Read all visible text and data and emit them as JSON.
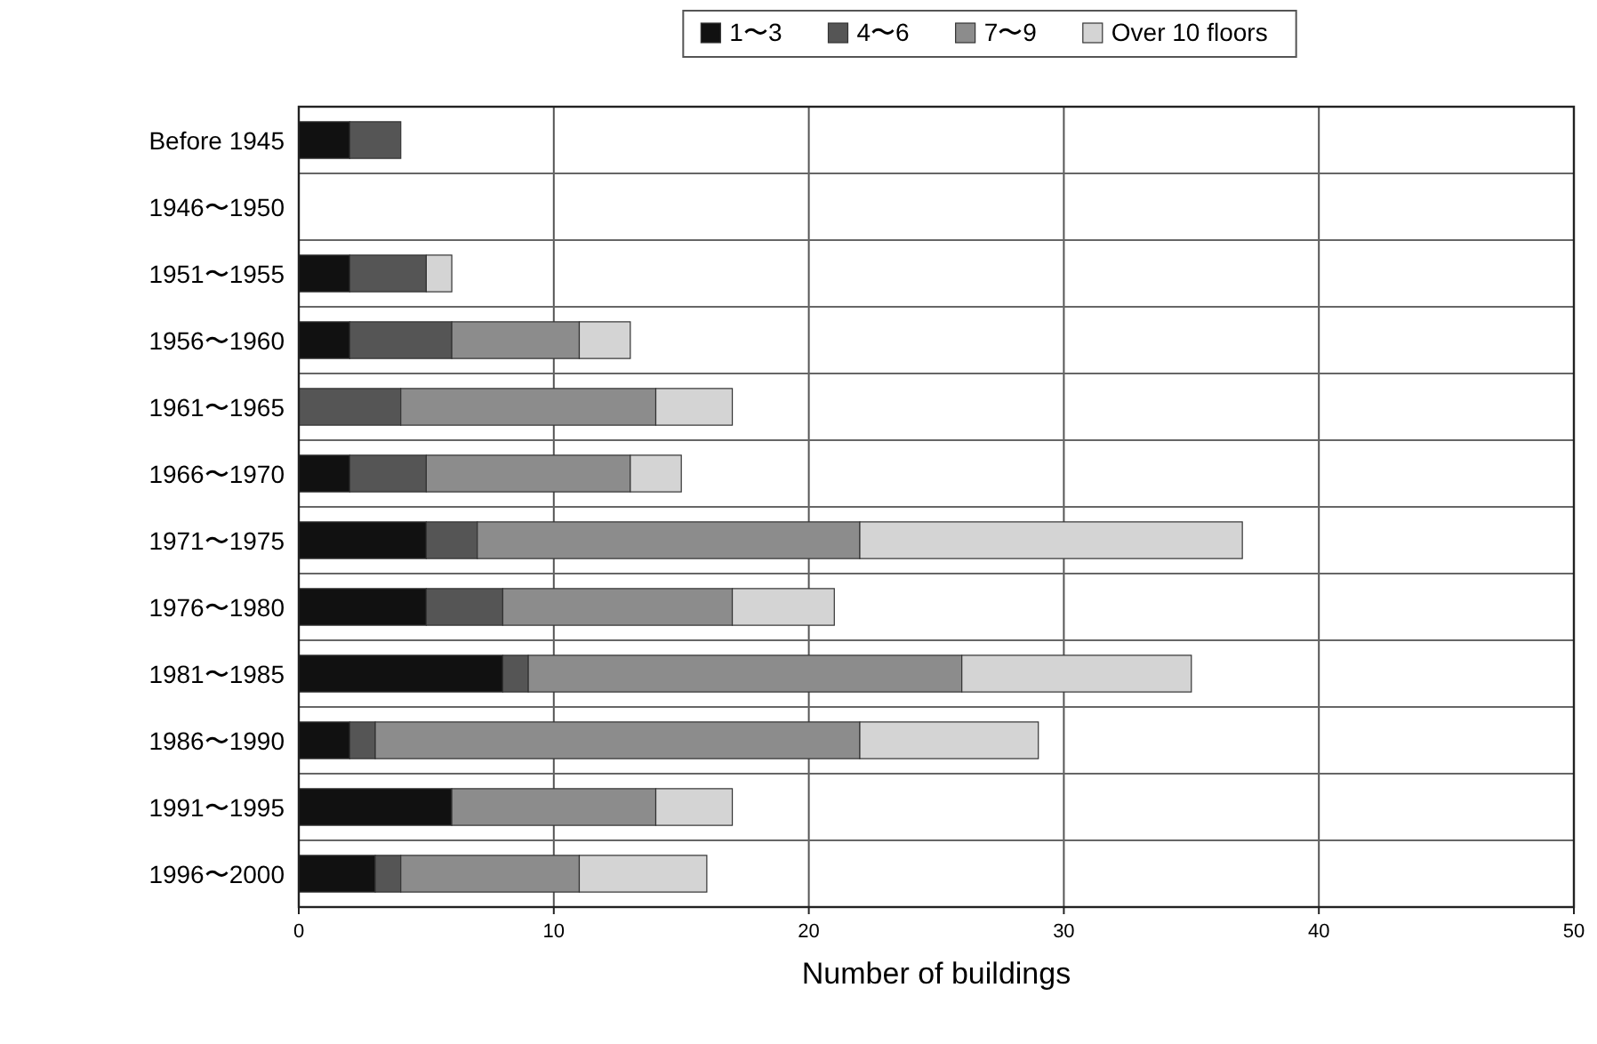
{
  "chart_data": {
    "type": "bar",
    "orientation": "horizontal",
    "stacked": true,
    "xlabel": "Number of buildings",
    "categories": [
      "Before 1945",
      "1946〜1950",
      "1951〜1955",
      "1956〜1960",
      "1961〜1965",
      "1966〜1970",
      "1971〜1975",
      "1976〜1980",
      "1981〜1985",
      "1986〜1990",
      "1991〜1995",
      "1996〜2000"
    ],
    "series": [
      {
        "name": "1〜3",
        "color": "#111111",
        "values": [
          2,
          0,
          2,
          2,
          0,
          2,
          5,
          5,
          8,
          2,
          6,
          3
        ]
      },
      {
        "name": "4〜6",
        "color": "#555555",
        "values": [
          2,
          0,
          3,
          4,
          4,
          3,
          2,
          3,
          1,
          1,
          0,
          1
        ]
      },
      {
        "name": "7〜9",
        "color": "#8c8c8c",
        "values": [
          0,
          0,
          0,
          5,
          10,
          8,
          15,
          9,
          17,
          19,
          8,
          7
        ]
      },
      {
        "name": "Over 10 floors",
        "color": "#d4d4d4",
        "values": [
          0,
          0,
          1,
          2,
          3,
          2,
          15,
          4,
          9,
          7,
          3,
          5
        ]
      }
    ],
    "xlim": [
      0,
      50
    ],
    "xticks": [
      0,
      10,
      20,
      30,
      40,
      50
    ],
    "grid": true,
    "legend": "top"
  }
}
